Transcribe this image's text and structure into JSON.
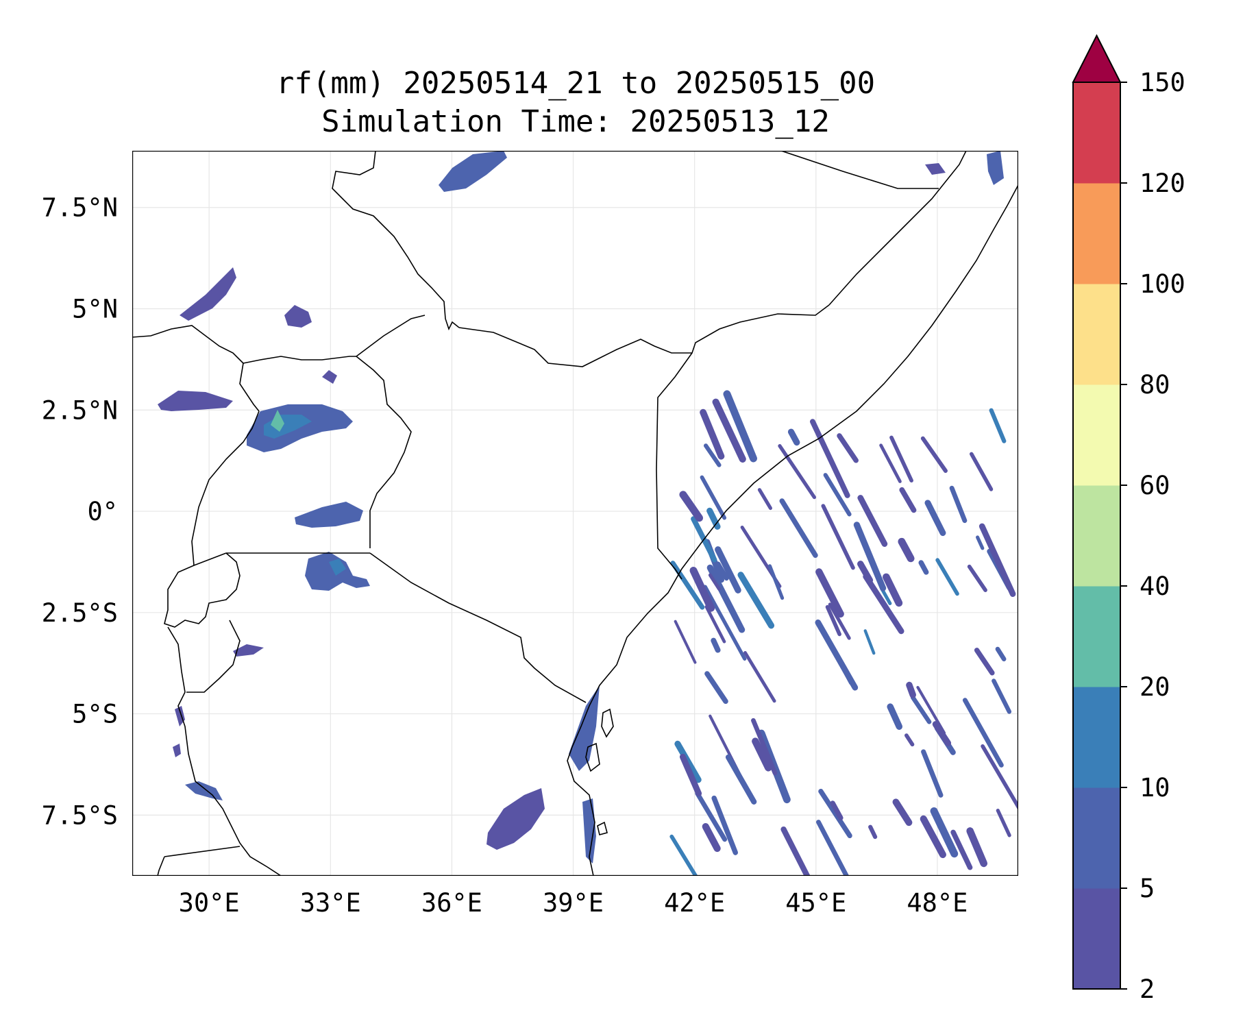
{
  "title": {
    "line1": "rf(mm) 20250514_21 to 20250515_00",
    "line2": "Simulation Time: 20250513_12"
  },
  "map": {
    "lon_range": [
      28.1,
      50.0
    ],
    "lat_range": [
      -9.0,
      8.9
    ],
    "grid": true,
    "x_ticks": [
      {
        "value": 30,
        "label": "30°E"
      },
      {
        "value": 33,
        "label": "33°E"
      },
      {
        "value": 36,
        "label": "36°E"
      },
      {
        "value": 39,
        "label": "39°E"
      },
      {
        "value": 42,
        "label": "42°E"
      },
      {
        "value": 45,
        "label": "45°E"
      },
      {
        "value": 48,
        "label": "48°E"
      }
    ],
    "y_ticks": [
      {
        "value": 7.5,
        "label": "7.5°N"
      },
      {
        "value": 5,
        "label": "5°N"
      },
      {
        "value": 2.5,
        "label": "2.5°N"
      },
      {
        "value": 0,
        "label": "0°"
      },
      {
        "value": -2.5,
        "label": "2.5°S"
      },
      {
        "value": -5,
        "label": "5°S"
      },
      {
        "value": -7.5,
        "label": "7.5°S"
      }
    ]
  },
  "colorbar": {
    "levels": [
      "2",
      "5",
      "10",
      "20",
      "40",
      "60",
      "80",
      "100",
      "120",
      "150"
    ],
    "colors": [
      "#5954a4",
      "#4d64ae",
      "#3a7fb8",
      "#63bda8",
      "#bde4a0",
      "#f3fab0",
      "#fde08a",
      "#f89b59",
      "#d43e50"
    ],
    "extend_color": "#9e0142",
    "extend": "max"
  },
  "rain_colors": {
    "low": "#5954a4",
    "mid": "#4d64ae",
    "high": "#3a7fb8",
    "peak": "#63bda8"
  }
}
